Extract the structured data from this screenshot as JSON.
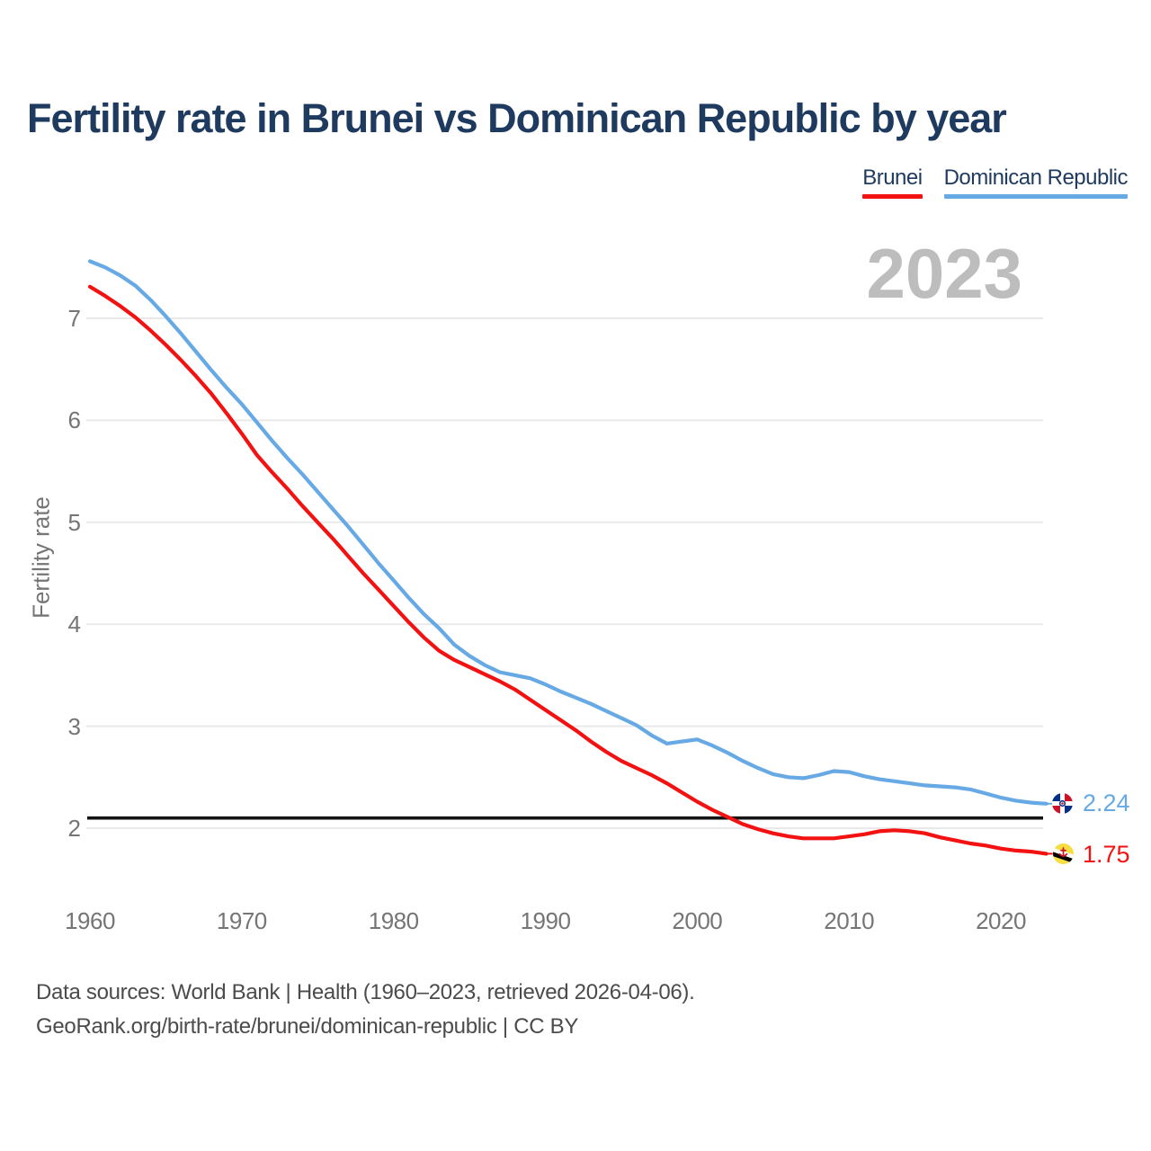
{
  "title": "Fertility rate in Brunei vs Dominican Republic by year",
  "watermark": "2023",
  "legend": [
    {
      "label": "Brunei",
      "color": "#f21212"
    },
    {
      "label": "Dominican Republic",
      "color": "#66a9e5"
    }
  ],
  "colors": {
    "title_navy": "#1e3a5f",
    "axis_gray": "#757575",
    "gridline": "#e9e9e9",
    "watermark_gray": "#bdbdbd",
    "reference_black": "#141414",
    "footer_gray": "#4b4b4b"
  },
  "chart_data": {
    "type": "line",
    "title": "Fertility rate in Brunei vs Dominican Republic by year",
    "xlabel": "",
    "ylabel": "Fertility rate",
    "x_ticks": [
      1960,
      1970,
      1980,
      1990,
      2000,
      2010,
      2020
    ],
    "y_ticks": [
      2,
      3,
      4,
      5,
      6,
      7
    ],
    "xlim": [
      1960,
      2023
    ],
    "ylim": [
      1.6,
      7.75
    ],
    "grid": "horizontal",
    "legend_position": "top-right",
    "reference_line": {
      "value": 2.1,
      "color": "#141414"
    },
    "x": [
      1960,
      1961,
      1962,
      1963,
      1964,
      1965,
      1966,
      1967,
      1968,
      1969,
      1970,
      1971,
      1972,
      1973,
      1974,
      1975,
      1976,
      1977,
      1978,
      1979,
      1980,
      1981,
      1982,
      1983,
      1984,
      1985,
      1986,
      1987,
      1988,
      1989,
      1990,
      1991,
      1992,
      1993,
      1994,
      1995,
      1996,
      1997,
      1998,
      1999,
      2000,
      2001,
      2002,
      2003,
      2004,
      2005,
      2006,
      2007,
      2008,
      2009,
      2010,
      2011,
      2012,
      2013,
      2014,
      2015,
      2016,
      2017,
      2018,
      2019,
      2020,
      2021,
      2022,
      2023
    ],
    "series": [
      {
        "name": "Brunei",
        "color": "#f21212",
        "end_label": "1.75",
        "values": [
          7.31,
          7.22,
          7.12,
          7.01,
          6.88,
          6.74,
          6.59,
          6.43,
          6.26,
          6.07,
          5.87,
          5.66,
          5.49,
          5.33,
          5.16,
          5.0,
          4.84,
          4.67,
          4.5,
          4.34,
          4.18,
          4.02,
          3.87,
          3.74,
          3.65,
          3.58,
          3.51,
          3.44,
          3.36,
          3.26,
          3.16,
          3.06,
          2.96,
          2.85,
          2.75,
          2.66,
          2.59,
          2.52,
          2.44,
          2.35,
          2.26,
          2.18,
          2.11,
          2.04,
          1.99,
          1.95,
          1.92,
          1.9,
          1.9,
          1.9,
          1.92,
          1.94,
          1.97,
          1.98,
          1.97,
          1.95,
          1.91,
          1.88,
          1.85,
          1.83,
          1.8,
          1.78,
          1.77,
          1.75
        ]
      },
      {
        "name": "Dominican Republic",
        "color": "#66a9e5",
        "end_label": "2.24",
        "values": [
          7.56,
          7.5,
          7.42,
          7.32,
          7.18,
          7.02,
          6.85,
          6.67,
          6.49,
          6.32,
          6.16,
          5.98,
          5.8,
          5.63,
          5.47,
          5.3,
          5.13,
          4.96,
          4.78,
          4.6,
          4.43,
          4.26,
          4.1,
          3.96,
          3.8,
          3.69,
          3.6,
          3.53,
          3.5,
          3.47,
          3.41,
          3.34,
          3.28,
          3.22,
          3.15,
          3.08,
          3.01,
          2.91,
          2.83,
          2.85,
          2.87,
          2.81,
          2.74,
          2.66,
          2.59,
          2.53,
          2.5,
          2.49,
          2.52,
          2.56,
          2.55,
          2.51,
          2.48,
          2.46,
          2.44,
          2.42,
          2.41,
          2.4,
          2.38,
          2.34,
          2.3,
          2.27,
          2.25,
          2.24
        ]
      }
    ]
  },
  "footer": {
    "line1": "Data sources: World Bank | Health (1960–2023, retrieved 2026-04-06).",
    "line2": "GeoRank.org/birth-rate/brunei/dominican-republic | CC BY"
  }
}
